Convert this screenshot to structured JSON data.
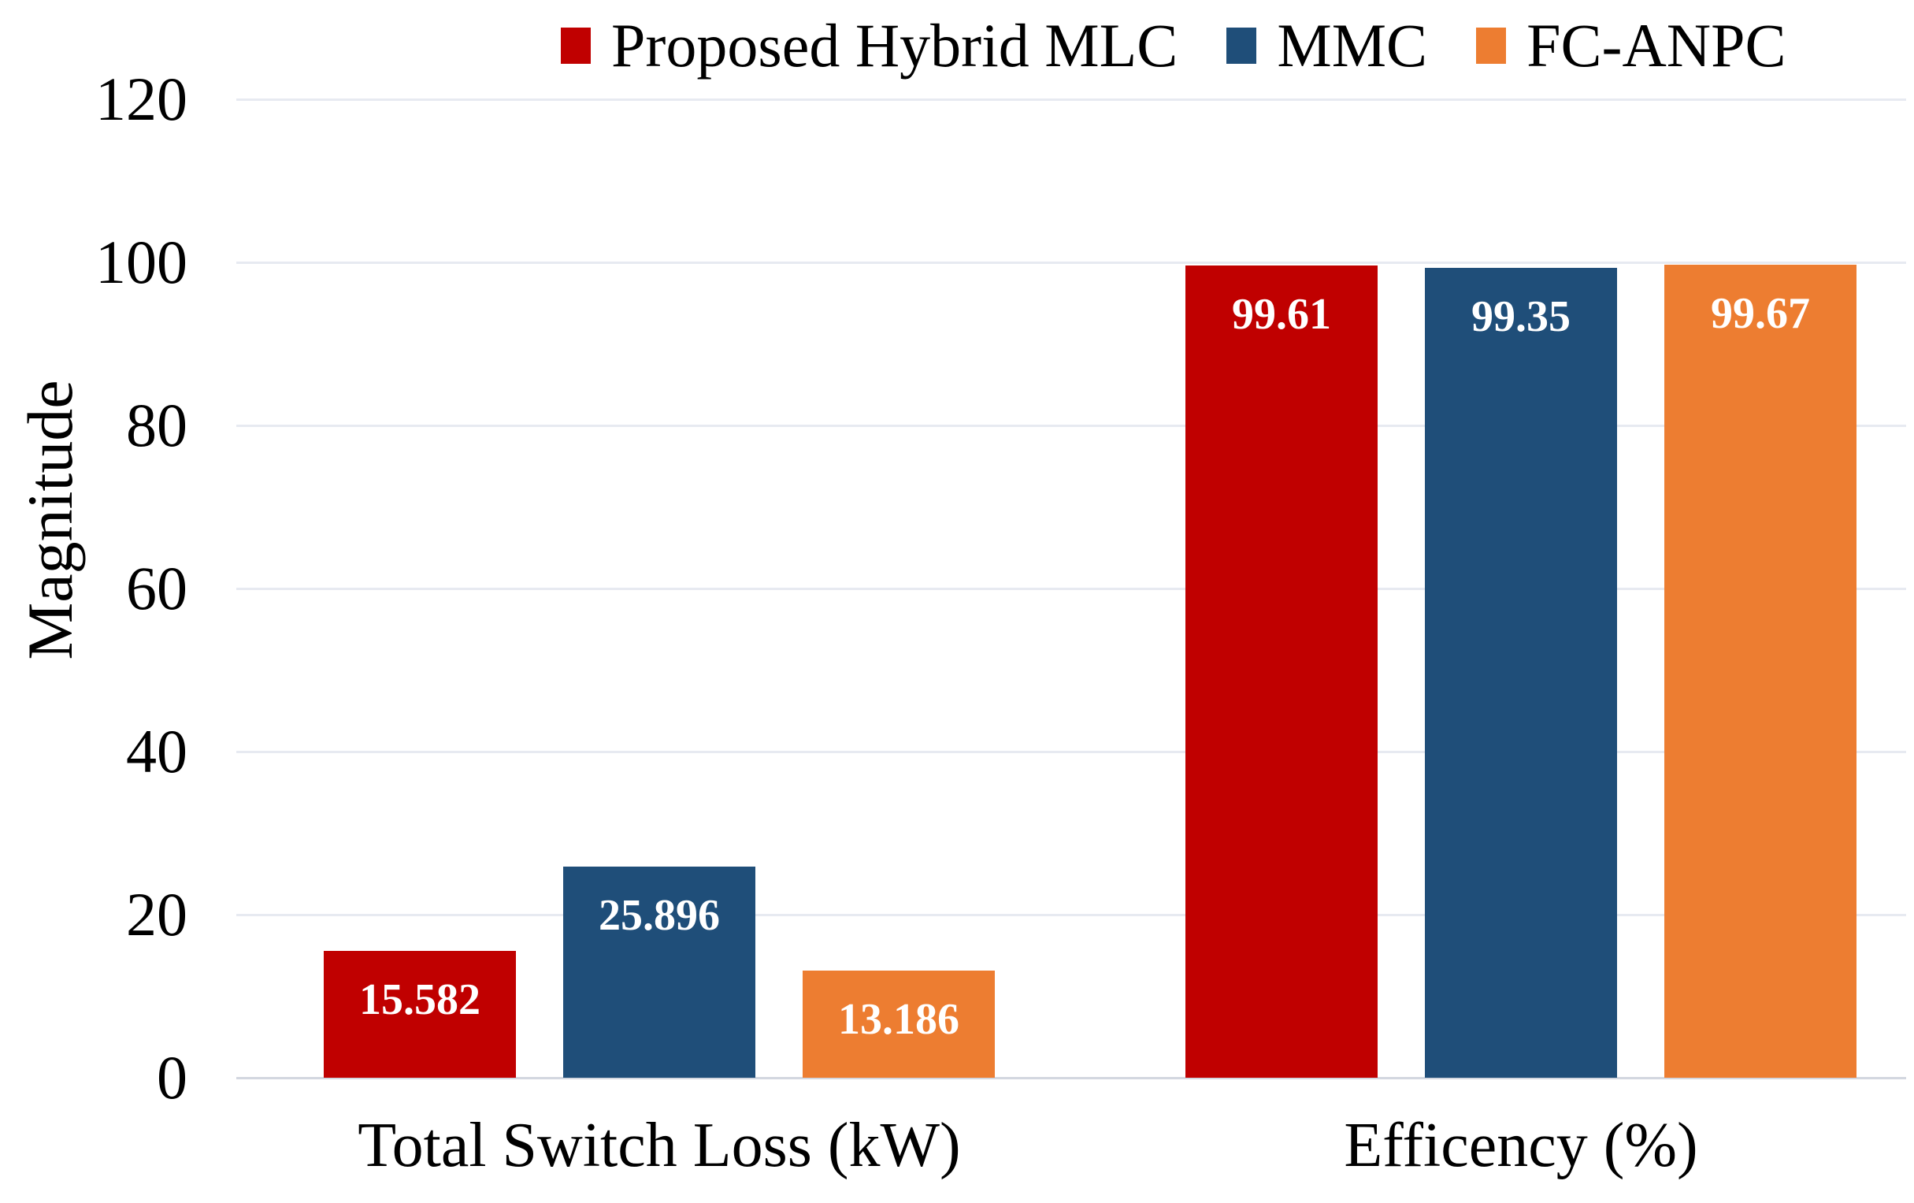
{
  "chart_data": {
    "type": "bar",
    "title": "",
    "xlabel": "",
    "ylabel": "Magnitude",
    "ylim": [
      0,
      120
    ],
    "yticks": [
      0,
      20,
      40,
      60,
      80,
      100,
      120
    ],
    "grid": true,
    "legend_position": "top",
    "categories": [
      "Total Switch Loss (kW)",
      "Efficency (%)"
    ],
    "series": [
      {
        "name": "Proposed Hybrid MLC",
        "color": "#c00000",
        "values": [
          15.582,
          99.61
        ],
        "data_labels": [
          "15.582",
          "99.61"
        ]
      },
      {
        "name": "MMC",
        "color": "#1f4e79",
        "values": [
          25.896,
          99.35
        ],
        "data_labels": [
          "25.896",
          "99.35"
        ]
      },
      {
        "name": "FC-ANPC",
        "color": "#ed7d31",
        "values": [
          13.186,
          99.67
        ],
        "data_labels": [
          "13.186",
          "99.67"
        ]
      }
    ],
    "data_label_color": "#ffffff",
    "gridline_color": "#e7eaf1",
    "axis_line_color": "#d3d7e0"
  }
}
